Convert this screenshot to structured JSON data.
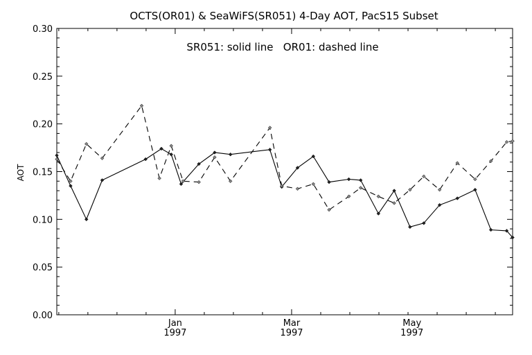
{
  "chart_data": {
    "type": "line",
    "title": "OCTS(OR01) & SeaWiFS(SR051) 4-Day AOT, PacS15 Subset",
    "annotation": "SR051: solid line   OR01: dashed line",
    "ylabel": "AOT",
    "xlabel": "",
    "ylim": [
      0.0,
      0.3
    ],
    "yticks": [
      "0.00",
      "0.05",
      "0.10",
      "0.15",
      "0.20",
      "0.25",
      "0.30"
    ],
    "xlim": [
      "1996-11-02",
      "1997-06-21"
    ],
    "xticks": [
      {
        "date": "1997-01-01",
        "label": "Jan",
        "year": "1997"
      },
      {
        "date": "1997-03-01",
        "label": "Mar",
        "year": "1997"
      },
      {
        "date": "1997-05-01",
        "label": "May",
        "year": "1997"
      }
    ],
    "grid": false,
    "series": [
      {
        "name": "SR051",
        "style": "solid",
        "color": "#000000",
        "x": [
          "1996-11-02",
          "1996-11-09",
          "1996-11-17",
          "1996-11-25",
          "1996-12-17",
          "1996-12-25",
          "1996-12-30",
          "1997-01-04",
          "1997-01-13",
          "1997-01-21",
          "1997-01-29",
          "1997-02-18",
          "1997-02-24",
          "1997-03-04",
          "1997-03-12",
          "1997-03-20",
          "1997-03-30",
          "1997-04-05",
          "1997-04-14",
          "1997-04-22",
          "1997-04-30",
          "1997-05-07",
          "1997-05-15",
          "1997-05-24",
          "1997-06-02",
          "1997-06-10",
          "1997-06-18",
          "1997-06-21"
        ],
        "values": [
          0.167,
          0.135,
          0.1,
          0.141,
          0.163,
          0.174,
          0.168,
          0.137,
          0.158,
          0.17,
          0.168,
          0.173,
          0.134,
          0.154,
          0.166,
          0.139,
          0.142,
          0.141,
          0.106,
          0.13,
          0.092,
          0.096,
          0.115,
          0.122,
          0.131,
          0.089,
          0.088,
          0.081
        ]
      },
      {
        "name": "OR01",
        "style": "dashed",
        "color": "#000000",
        "x": [
          "1996-11-02",
          "1996-11-09",
          "1996-11-17",
          "1996-11-25",
          "1996-12-15",
          "1996-12-24",
          "1996-12-30",
          "1997-01-05",
          "1997-01-13",
          "1997-01-21",
          "1997-01-29",
          "1997-02-18",
          "1997-02-24",
          "1997-03-04",
          "1997-03-12",
          "1997-03-20",
          "1997-03-30",
          "1997-04-05",
          "1997-04-14",
          "1997-04-22",
          "1997-04-30",
          "1997-05-07",
          "1997-05-15",
          "1997-05-24",
          "1997-06-02",
          "1997-06-10",
          "1997-06-18",
          "1997-06-21"
        ],
        "values": [
          0.163,
          0.14,
          0.179,
          0.164,
          0.219,
          0.143,
          0.177,
          0.14,
          0.139,
          0.165,
          0.14,
          0.196,
          0.135,
          0.132,
          0.137,
          0.11,
          0.124,
          0.133,
          0.124,
          0.117,
          0.131,
          0.145,
          0.131,
          0.159,
          0.142,
          0.161,
          0.181,
          0.182
        ]
      }
    ]
  }
}
